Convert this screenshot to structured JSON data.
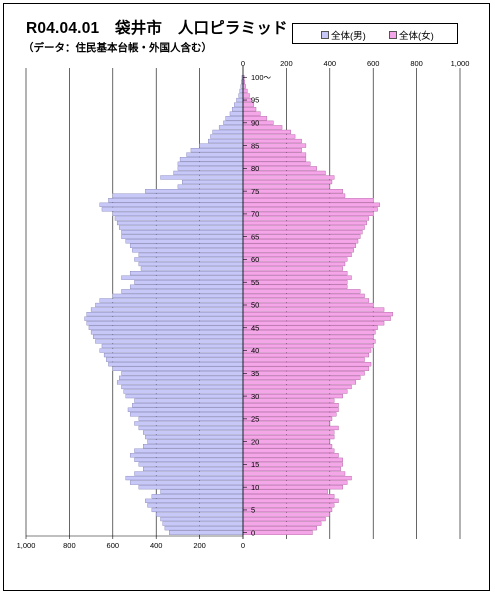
{
  "title": "R04.04.01　袋井市　人口ピラミッド",
  "subtitle": "（データ：住民基本台帳・外国人含む）",
  "chart_data": {
    "type": "bar",
    "orientation": "horizontal-population-pyramid",
    "title": "R04.04.01　袋井市　人口ピラミッド",
    "subtitle": "（データ：住民基本台帳・外国人含む）",
    "age_tick_labels": [
      "0",
      "5",
      "10",
      "15",
      "20",
      "25",
      "30",
      "35",
      "40",
      "45",
      "50",
      "55",
      "60",
      "65",
      "70",
      "75",
      "80",
      "85",
      "90",
      "95",
      "100～"
    ],
    "ages": [
      0,
      1,
      2,
      3,
      4,
      5,
      6,
      7,
      8,
      9,
      10,
      11,
      12,
      13,
      14,
      15,
      16,
      17,
      18,
      19,
      20,
      21,
      22,
      23,
      24,
      25,
      26,
      27,
      28,
      29,
      30,
      31,
      32,
      33,
      34,
      35,
      36,
      37,
      38,
      39,
      40,
      41,
      42,
      43,
      44,
      45,
      46,
      47,
      48,
      49,
      50,
      51,
      52,
      53,
      54,
      55,
      56,
      57,
      58,
      59,
      60,
      61,
      62,
      63,
      64,
      65,
      66,
      67,
      68,
      69,
      70,
      71,
      72,
      73,
      74,
      75,
      76,
      77,
      78,
      79,
      80,
      81,
      82,
      83,
      84,
      85,
      86,
      87,
      88,
      89,
      90,
      91,
      92,
      93,
      94,
      95,
      96,
      97,
      98,
      99,
      100
    ],
    "x_top_tick_labels": [
      "0",
      "200",
      "400",
      "600",
      "800",
      "1,000"
    ],
    "x_bottom_tick_labels": [
      "1,000",
      "800",
      "600",
      "400",
      "200",
      "0"
    ],
    "xlim": [
      0,
      1000
    ],
    "grid": "vertical",
    "series": [
      {
        "name": "全体(男)",
        "side": "left",
        "color": "#c8c8f8",
        "values": [
          340,
          360,
          370,
          380,
          400,
          420,
          440,
          450,
          420,
          380,
          480,
          520,
          540,
          500,
          460,
          480,
          500,
          520,
          500,
          460,
          440,
          450,
          460,
          480,
          500,
          480,
          520,
          530,
          510,
          500,
          540,
          550,
          560,
          580,
          570,
          560,
          600,
          620,
          630,
          640,
          660,
          650,
          680,
          690,
          700,
          710,
          720,
          730,
          720,
          700,
          680,
          660,
          600,
          560,
          520,
          500,
          560,
          520,
          470,
          480,
          500,
          480,
          510,
          520,
          540,
          560,
          560,
          570,
          580,
          590,
          600,
          650,
          660,
          620,
          600,
          450,
          300,
          280,
          380,
          320,
          300,
          300,
          290,
          260,
          240,
          200,
          160,
          150,
          140,
          110,
          90,
          80,
          60,
          50,
          40,
          30,
          20,
          15,
          10,
          8,
          5
        ]
      },
      {
        "name": "全体(女)",
        "side": "right",
        "color": "#f4a6e8",
        "values": [
          320,
          340,
          360,
          380,
          400,
          410,
          420,
          440,
          420,
          390,
          460,
          480,
          500,
          470,
          450,
          460,
          460,
          440,
          420,
          410,
          400,
          420,
          420,
          440,
          400,
          410,
          430,
          440,
          440,
          420,
          460,
          480,
          500,
          520,
          540,
          560,
          580,
          590,
          560,
          580,
          590,
          600,
          610,
          600,
          610,
          620,
          650,
          680,
          690,
          650,
          600,
          580,
          560,
          540,
          480,
          480,
          500,
          480,
          460,
          470,
          480,
          500,
          510,
          520,
          530,
          540,
          550,
          560,
          570,
          580,
          600,
          620,
          630,
          600,
          470,
          460,
          400,
          410,
          420,
          380,
          340,
          310,
          290,
          290,
          270,
          290,
          270,
          240,
          220,
          180,
          140,
          110,
          80,
          60,
          50,
          40,
          30,
          20,
          12,
          8,
          6
        ]
      }
    ]
  }
}
